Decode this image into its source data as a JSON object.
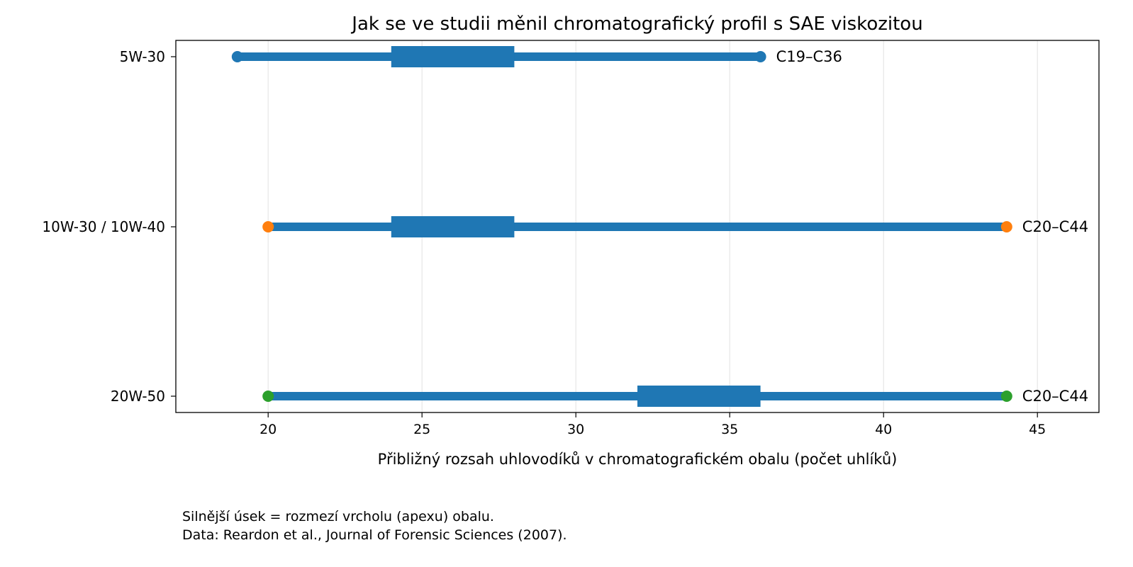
{
  "chart_data": {
    "type": "range",
    "title": "Jak se ve studii měnil chromatografický profil s SAE viskozitou",
    "xlabel": "Přibližný rozsah uhlovodíků v chromatografickém obalu (počet uhlíků)",
    "ylabel": "",
    "xlim": [
      17,
      47
    ],
    "xticks": [
      20,
      25,
      30,
      35,
      40,
      45
    ],
    "xtick_labels": [
      "20",
      "25",
      "30",
      "35",
      "40",
      "45"
    ],
    "grid": "vertical",
    "line_color": "#1f77b4",
    "rows": [
      {
        "category": "5W-30",
        "min": 19,
        "max": 36,
        "apex_min": 24,
        "apex_max": 28,
        "label": "C19–C36",
        "marker_color": "#1f77b4"
      },
      {
        "category": "10W-30 / 10W-40",
        "min": 20,
        "max": 44,
        "apex_min": 24,
        "apex_max": 28,
        "label": "C20–C44",
        "marker_color": "#ff7f0e"
      },
      {
        "category": "20W-50",
        "min": 20,
        "max": 44,
        "apex_min": 32,
        "apex_max": 36,
        "label": "C20–C44",
        "marker_color": "#2ca02c"
      }
    ]
  },
  "footnotes": {
    "line1": "Silnější úsek = rozmezí vrcholu (apexu) obalu.",
    "line2": "Data: Reardon et al., Journal of Forensic Sciences (2007)."
  }
}
